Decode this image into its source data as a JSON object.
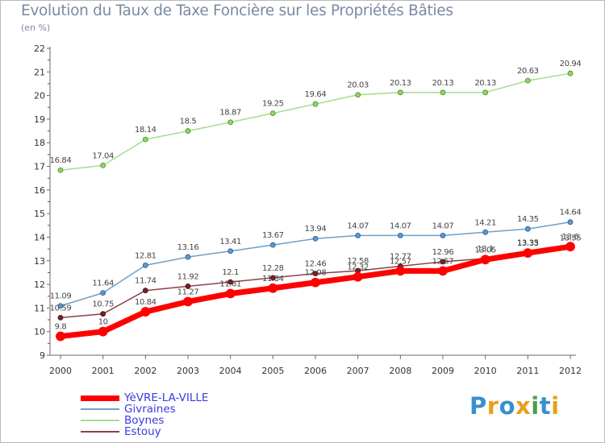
{
  "title": "Evolution du Taux de Taxe Foncière sur les Propriétés Bâties",
  "unit_label": "(en %)",
  "logo": {
    "text": "Proxiti",
    "letters": [
      {
        "ch": "P",
        "color": "#3a8fd0"
      },
      {
        "ch": "r",
        "color": "#e8a020"
      },
      {
        "ch": "o",
        "color": "#3a8fd0"
      },
      {
        "ch": "x",
        "color": "#e8a020"
      },
      {
        "ch": "i",
        "color": "#4aa14a"
      },
      {
        "ch": "t",
        "color": "#3a8fd0"
      },
      {
        "ch": "i",
        "color": "#e8a020"
      }
    ]
  },
  "chart_data": {
    "type": "line",
    "title": "Evolution du Taux de Taxe Foncière sur les Propriétés Bâties",
    "ylabel": "(en %)",
    "xlabel": "",
    "x": [
      "2000",
      "2001",
      "2002",
      "2003",
      "2004",
      "2005",
      "2006",
      "2007",
      "2008",
      "2009",
      "2010",
      "2011",
      "2012"
    ],
    "ylim": [
      9,
      22
    ],
    "yticks": [
      9,
      10,
      11,
      12,
      13,
      14,
      15,
      16,
      17,
      18,
      19,
      20,
      21,
      22
    ],
    "grid": false,
    "legend_position": "bottom-left",
    "series": [
      {
        "name": "YèVRE-LA-VILLE",
        "color": "#ff0000",
        "values": [
          9.8,
          10,
          10.84,
          11.27,
          11.61,
          11.84,
          12.08,
          12.32,
          12.57,
          12.57,
          13.05,
          13.33,
          13.6
        ],
        "labels": [
          "9.8",
          "10",
          "10.84",
          "11.27",
          "11.61",
          "11.84",
          "12.08",
          "12.32",
          "12.57",
          "12.57",
          "13.05",
          "13.33",
          "13.6"
        ]
      },
      {
        "name": "Givraines",
        "color": "#6fa0c8",
        "values": [
          11.09,
          11.64,
          12.81,
          13.16,
          13.41,
          13.67,
          13.94,
          14.07,
          14.07,
          14.07,
          14.21,
          14.35,
          14.64
        ],
        "labels": [
          "11.09",
          "11.64",
          "12.81",
          "13.16",
          "13.41",
          "13.67",
          "13.94",
          "14.07",
          "14.07",
          "14.07",
          "14.21",
          "14.35",
          "14.64"
        ]
      },
      {
        "name": "Boynes",
        "color": "#a8dc8c",
        "values": [
          16.84,
          17.04,
          18.14,
          18.5,
          18.87,
          19.25,
          19.64,
          20.03,
          20.13,
          20.13,
          20.13,
          20.63,
          20.94
        ],
        "labels": [
          "16.84",
          "17.04",
          "18.14",
          "18.5",
          "18.87",
          "19.25",
          "19.64",
          "20.03",
          "20.13",
          "20.13",
          "20.13",
          "20.63",
          "20.94"
        ]
      },
      {
        "name": "Estouy",
        "color": "#8b4048",
        "values": [
          10.59,
          10.75,
          11.74,
          11.92,
          12.1,
          12.28,
          12.46,
          12.58,
          12.77,
          12.96,
          13.1,
          13.35,
          13.55
        ],
        "labels": [
          "10.59",
          "10.75",
          "11.74",
          "11.92",
          "12.1",
          "12.28",
          "12.46",
          "12.58",
          "12.77",
          "12.96",
          "13.1",
          "13.35",
          "13.55"
        ]
      }
    ]
  }
}
